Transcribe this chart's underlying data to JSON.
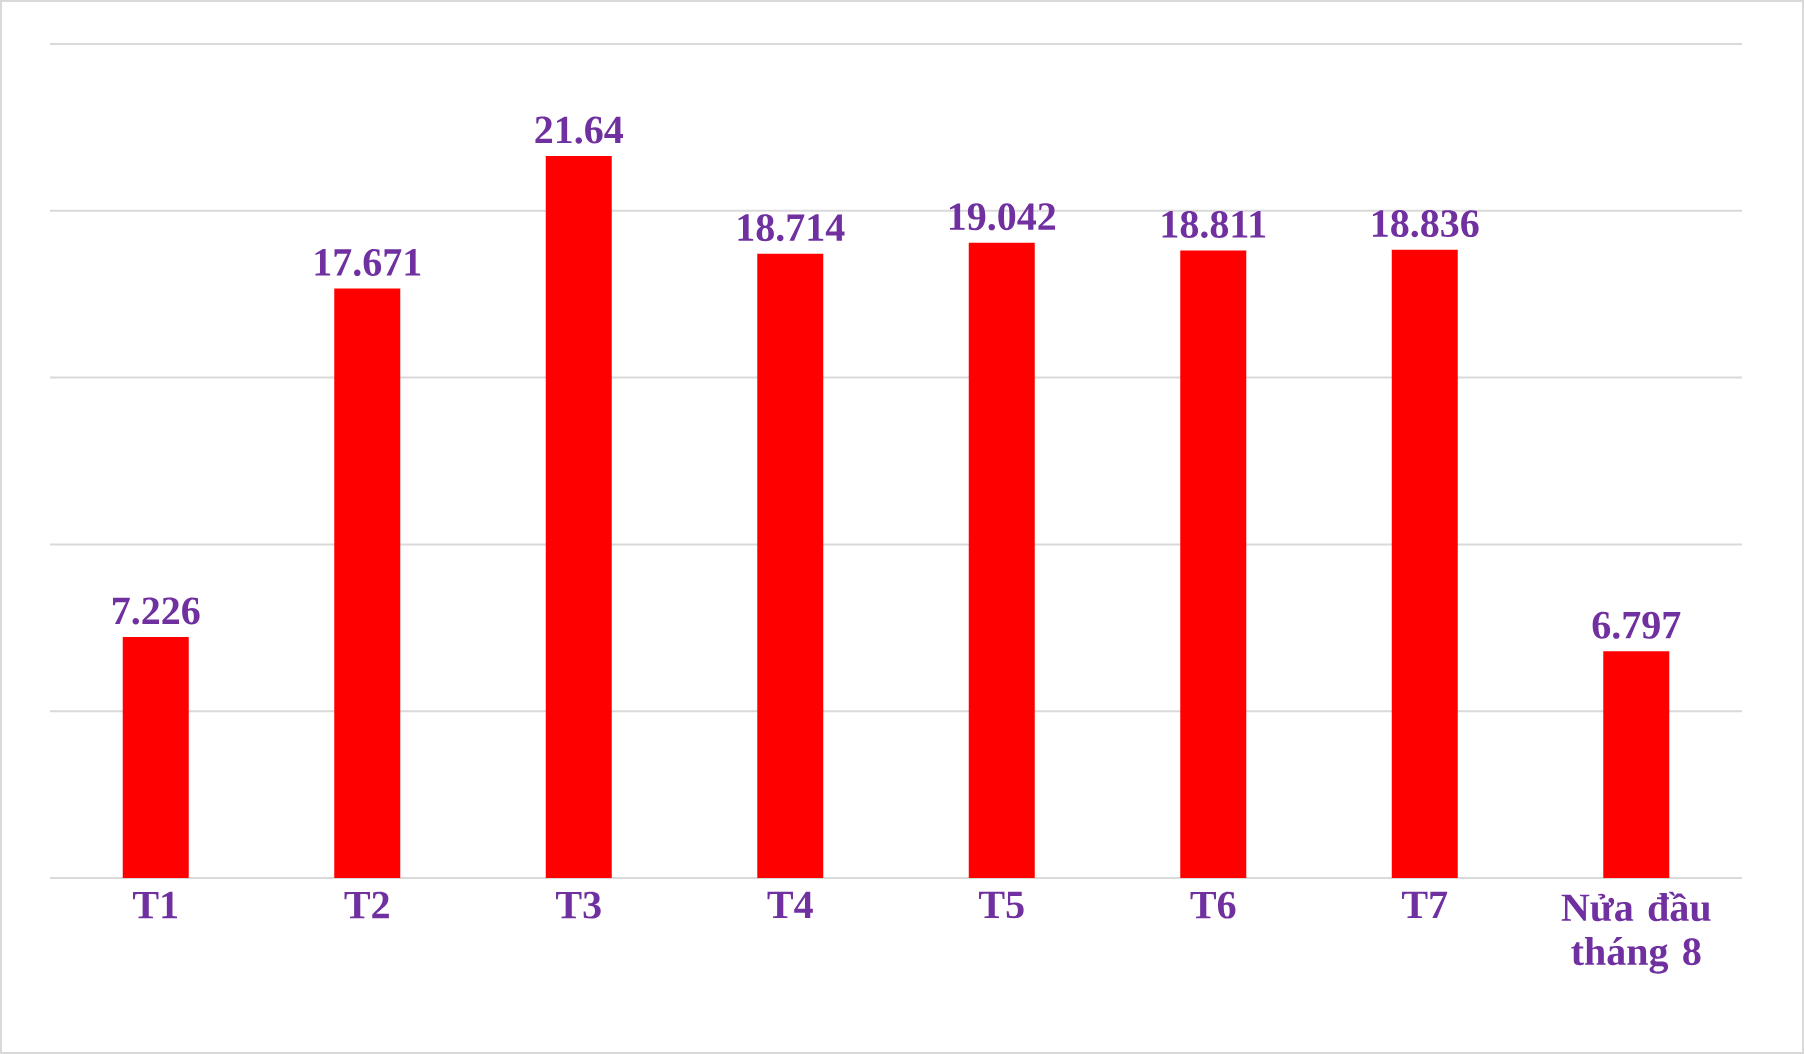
{
  "chart_data": {
    "type": "bar",
    "categories": [
      "T1",
      "T2",
      "T3",
      "T4",
      "T5",
      "T6",
      "T7",
      "Nửa đầu tháng 8"
    ],
    "values": [
      7.226,
      17.671,
      21.64,
      18.714,
      19.042,
      18.811,
      18.836,
      6.797
    ],
    "color": "#ff0000",
    "ylim": [
      0,
      25
    ],
    "yticks": [
      {
        "value": 0,
        "label": null
      },
      {
        "value": 5,
        "label": null
      },
      {
        "value": 10,
        "label": null
      },
      {
        "value": 15,
        "label": null
      },
      {
        "value": 20,
        "label": null
      },
      {
        "value": 25,
        "label": null
      }
    ],
    "tick_labels": "x",
    "grid": "y",
    "data_labels": true
  }
}
